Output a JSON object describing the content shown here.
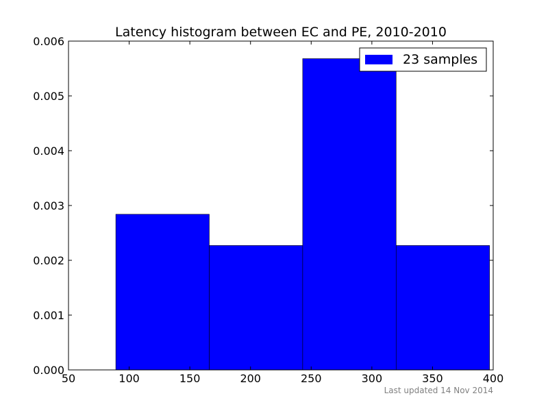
{
  "chart_data": {
    "type": "bar",
    "title": "Latency histogram between EC and PE, 2010-2010",
    "xlabel": "",
    "ylabel": "",
    "xlim": [
      50,
      400
    ],
    "ylim": [
      0,
      0.006
    ],
    "xticks": [
      "50",
      "100",
      "150",
      "200",
      "250",
      "300",
      "350",
      "400"
    ],
    "yticks": [
      "0.000",
      "0.001",
      "0.002",
      "0.003",
      "0.004",
      "0.005",
      "0.006"
    ],
    "bins": [
      {
        "x0": 89,
        "x1": 166,
        "value": 0.00284
      },
      {
        "x0": 166,
        "x1": 243,
        "value": 0.00227
      },
      {
        "x0": 243,
        "x1": 320,
        "value": 0.00568
      },
      {
        "x0": 320,
        "x1": 397,
        "value": 0.00227
      }
    ],
    "series": [
      {
        "name": "23 samples",
        "color": "#0000ff"
      }
    ],
    "legend_position": "top-right",
    "grid": false,
    "footer": "Last updated 14 Nov 2014"
  }
}
